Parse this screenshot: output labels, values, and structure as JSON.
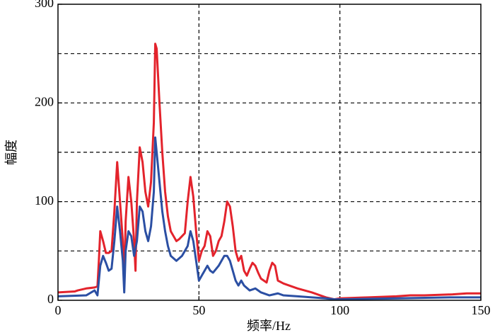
{
  "chart_data": {
    "type": "line",
    "xlabel": "频率/Hz",
    "ylabel": "幅度",
    "xlim": [
      0,
      150
    ],
    "xticks": [
      0,
      50,
      100,
      150
    ],
    "ylim": [
      0,
      300
    ],
    "yticks": [
      0,
      100,
      200,
      300
    ],
    "yminor": [
      50,
      150,
      250
    ],
    "grid": true,
    "series": [
      {
        "color": "#e3232c",
        "x": [
          0,
          6,
          7,
          10,
          13,
          14,
          14.5,
          15,
          16,
          17,
          18,
          19,
          20,
          21,
          22,
          23,
          23.5,
          24,
          25,
          26,
          27,
          27.5,
          28,
          29,
          30,
          31,
          32,
          33,
          34,
          34.5,
          35,
          36,
          37,
          38,
          39,
          40,
          41,
          42,
          43,
          44,
          45,
          46,
          47,
          48,
          49,
          50,
          51,
          52,
          53,
          54,
          55,
          56,
          57,
          58,
          59,
          60,
          61,
          62,
          63,
          64,
          65,
          66,
          67,
          68,
          69,
          70,
          71,
          72,
          73,
          74,
          75,
          76,
          77,
          78,
          80,
          85,
          90,
          95,
          98,
          100,
          110,
          120,
          125,
          130,
          140,
          145,
          150
        ],
        "values": [
          8,
          9,
          10,
          12,
          13,
          14,
          40,
          70,
          60,
          48,
          48,
          50,
          90,
          140,
          100,
          60,
          15,
          80,
          125,
          100,
          60,
          30,
          100,
          155,
          140,
          110,
          95,
          120,
          180,
          260,
          255,
          200,
          150,
          110,
          85,
          70,
          65,
          60,
          62,
          65,
          68,
          100,
          125,
          105,
          70,
          40,
          50,
          55,
          70,
          65,
          45,
          50,
          60,
          65,
          80,
          100,
          95,
          75,
          50,
          40,
          45,
          30,
          25,
          32,
          38,
          35,
          28,
          22,
          20,
          18,
          30,
          38,
          35,
          20,
          17,
          12,
          8,
          3,
          1,
          2,
          3,
          4,
          5,
          5,
          6,
          7,
          7
        ]
      },
      {
        "color": "#2b4fa3",
        "x": [
          0,
          10,
          13,
          14,
          15,
          16,
          17,
          18,
          19,
          20,
          21,
          22,
          23,
          23.5,
          24,
          25,
          26,
          27,
          28,
          29,
          30,
          31,
          32,
          33,
          34,
          34.5,
          35,
          36,
          37,
          38,
          39,
          40,
          42,
          44,
          46,
          47,
          48,
          49,
          50,
          51,
          52,
          53,
          54,
          55,
          57,
          59,
          60,
          61,
          62,
          63,
          64,
          65,
          66,
          68,
          70,
          72,
          75,
          78,
          80,
          85,
          90,
          95,
          98,
          100,
          120,
          140,
          150
        ],
        "values": [
          4,
          5,
          10,
          5,
          35,
          45,
          38,
          30,
          32,
          60,
          95,
          70,
          40,
          8,
          50,
          70,
          65,
          45,
          60,
          95,
          90,
          70,
          60,
          75,
          110,
          165,
          150,
          120,
          90,
          70,
          55,
          45,
          40,
          45,
          55,
          70,
          60,
          40,
          20,
          25,
          30,
          35,
          30,
          28,
          35,
          45,
          45,
          40,
          30,
          20,
          15,
          20,
          15,
          10,
          12,
          8,
          5,
          7,
          5,
          4,
          3,
          2,
          1,
          1,
          2,
          3,
          3
        ]
      }
    ]
  }
}
